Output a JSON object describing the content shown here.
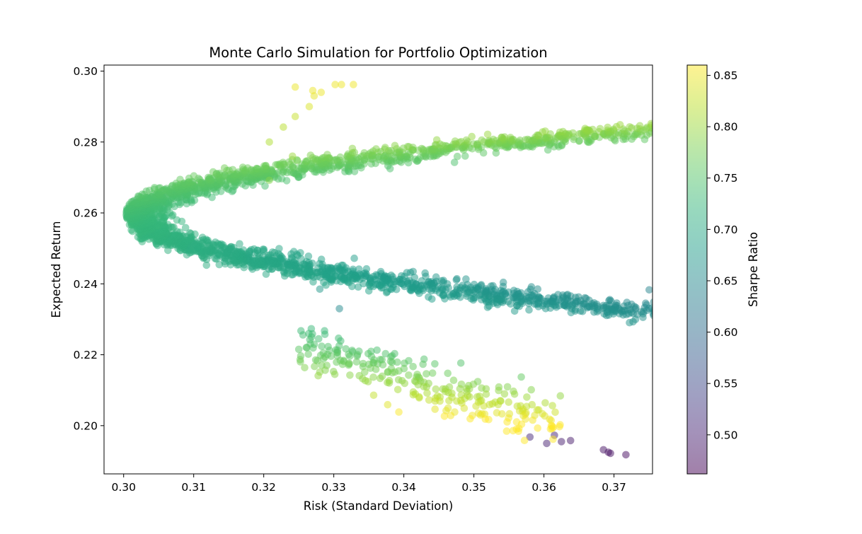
{
  "chart_data": {
    "type": "scatter",
    "title": "Monte Carlo Simulation for Portfolio Optimization",
    "xlabel": "Risk (Standard Deviation)",
    "ylabel": "Expected Return",
    "xlim": [
      0.2972,
      0.3755
    ],
    "ylim": [
      0.1864,
      0.3017
    ],
    "xticks": [
      "0.30",
      "0.31",
      "0.32",
      "0.33",
      "0.34",
      "0.35",
      "0.36",
      "0.37"
    ],
    "yticks": [
      "0.20",
      "0.22",
      "0.24",
      "0.26",
      "0.28",
      "0.30"
    ],
    "grid": false,
    "colorbar": {
      "label": "Sharpe Ratio",
      "range": [
        0.462,
        0.86
      ],
      "ticks": [
        "0.50",
        "0.55",
        "0.60",
        "0.65",
        "0.70",
        "0.75",
        "0.80",
        "0.85"
      ],
      "colormap": "viridis",
      "alpha": 0.5
    },
    "frontier_min_risk": {
      "x": 0.3003,
      "y": 0.2595
    },
    "upper_tail": [
      {
        "x": 0.3245,
        "y": 0.2955,
        "s": 0.848
      },
      {
        "x": 0.327,
        "y": 0.2945,
        "s": 0.849
      },
      {
        "x": 0.3282,
        "y": 0.294,
        "s": 0.85
      },
      {
        "x": 0.3302,
        "y": 0.2962,
        "s": 0.851
      },
      {
        "x": 0.3311,
        "y": 0.2962,
        "s": 0.851
      },
      {
        "x": 0.3328,
        "y": 0.2962,
        "s": 0.852
      },
      {
        "x": 0.3272,
        "y": 0.293,
        "s": 0.846
      },
      {
        "x": 0.3265,
        "y": 0.29,
        "s": 0.838
      },
      {
        "x": 0.3245,
        "y": 0.2872,
        "s": 0.826
      },
      {
        "x": 0.3228,
        "y": 0.2842,
        "s": 0.818
      },
      {
        "x": 0.3241,
        "y": 0.276,
        "s": 0.8
      },
      {
        "x": 0.3208,
        "y": 0.2692,
        "s": 0.786
      },
      {
        "x": 0.3208,
        "y": 0.28,
        "s": 0.812
      }
    ],
    "lower_tail": [
      {
        "x": 0.3717,
        "y": 0.1918,
        "s": 0.475
      },
      {
        "x": 0.3695,
        "y": 0.1922,
        "s": 0.478
      },
      {
        "x": 0.3692,
        "y": 0.1925,
        "s": 0.479
      },
      {
        "x": 0.3685,
        "y": 0.1932,
        "s": 0.481
      },
      {
        "x": 0.3638,
        "y": 0.1958,
        "s": 0.492
      },
      {
        "x": 0.3625,
        "y": 0.1955,
        "s": 0.495
      },
      {
        "x": 0.3604,
        "y": 0.195,
        "s": 0.499
      },
      {
        "x": 0.3615,
        "y": 0.1973,
        "s": 0.502
      },
      {
        "x": 0.358,
        "y": 0.1968,
        "s": 0.508
      },
      {
        "x": 0.3308,
        "y": 0.233,
        "s": 0.65
      },
      {
        "x": 0.328,
        "y": 0.2385,
        "s": 0.672
      }
    ]
  }
}
